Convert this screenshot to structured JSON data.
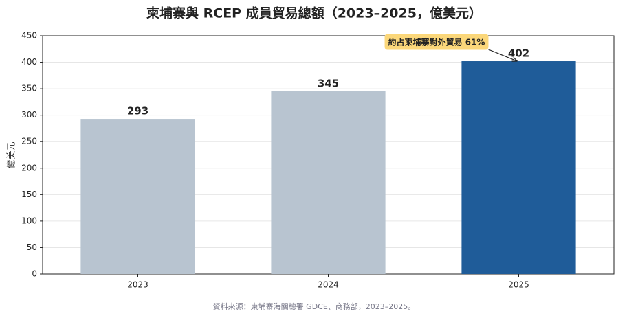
{
  "chart_data": {
    "type": "bar",
    "title": "柬埔寨與 RCEP 成員貿易總額（2023–2025，億美元）",
    "y_label": "億美元",
    "categories": [
      "2023",
      "2024",
      "2025"
    ],
    "values": [
      293,
      345,
      402
    ],
    "colors": [
      "#b8c4d0",
      "#b8c4d0",
      "#1f5c99"
    ],
    "ylim": [
      0,
      450
    ],
    "yticks": [
      0,
      50,
      100,
      150,
      200,
      250,
      300,
      350,
      400,
      450
    ],
    "grid": true,
    "annotation": "約占柬埔寨對外貿易 61%",
    "source": "資料來源：柬埔寨海關總署 GDCE、商務部，2023–2025。"
  }
}
